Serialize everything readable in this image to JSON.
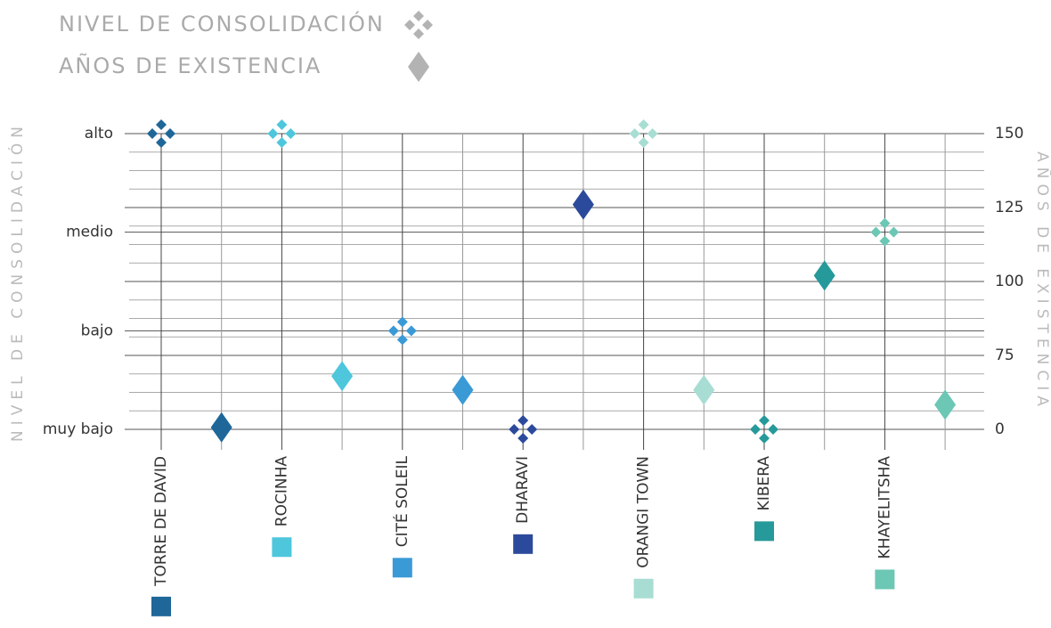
{
  "chart_data": {
    "type": "dual-axis-point",
    "categories": [
      "TORRE DE DAVID",
      "ROCINHA",
      "CITÉ SOLEIL",
      "DHARAVI",
      "ORANGI TOWN",
      "KIBERA",
      "KHAYELITSHA"
    ],
    "colors": [
      "#1f6799",
      "#4ec6dc",
      "#3a9ad6",
      "#2c4a9c",
      "#a8ddd3",
      "#26999a",
      "#6cc7b4"
    ],
    "ylabel": "NIVEL DE CONSOLIDACIÓN",
    "ylevels": [
      "muy bajo",
      "bajo",
      "medio",
      "alto"
    ],
    "y2label": "AÑOS DE EXISTENCIA",
    "y2lim": [
      0,
      150
    ],
    "y2ticks": [
      0,
      75,
      100,
      125,
      150
    ],
    "y2_scale": "tick-spaced",
    "legend_color": "#b3b3b3",
    "series": [
      {
        "name": "NIVEL DE CONSOLIDACIÓN",
        "values": [
          "alto",
          "alto",
          "bajo",
          "muy bajo",
          "alto",
          "muy bajo",
          "medio"
        ]
      },
      {
        "name": "AÑOS DE EXISTENCIA",
        "axis": "y2",
        "values": [
          2,
          54,
          40,
          126,
          40,
          102,
          25
        ]
      }
    ]
  }
}
